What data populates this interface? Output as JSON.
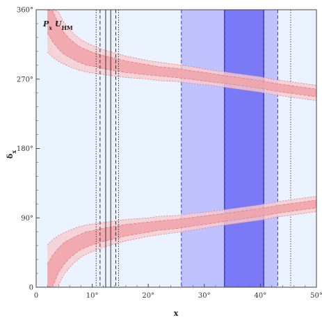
{
  "chart_data": {
    "type": "area",
    "title_main": "P",
    "title_sub1": "x",
    "title_mid": " U",
    "title_sub2": "HM",
    "xlabel": "x",
    "ylabel_main": "δ",
    "ylabel_sub": "x",
    "xlim": [
      0,
      50
    ],
    "ylim": [
      0,
      360
    ],
    "x_ticks": [
      0,
      10,
      20,
      30,
      40,
      50
    ],
    "x_tick_labels": [
      "0",
      "10°",
      "20°",
      "30°",
      "40°",
      "50°"
    ],
    "y_ticks": [
      0,
      90,
      180,
      270,
      360
    ],
    "y_tick_labels": [
      "0",
      "90°",
      "180°",
      "270°",
      "360°"
    ],
    "light_region_x": [
      0,
      50
    ],
    "blue_bands": [
      {
        "name": "outer",
        "x": [
          25.9,
          43.1
        ],
        "color": "#b8b8ff"
      },
      {
        "name": "inner",
        "x": [
          33.6,
          40.6
        ],
        "color": "#6d6df5"
      }
    ],
    "dotted_blue_lines_x": [
      45.4
    ],
    "solid_blue_lines_x": [
      33.6,
      40.6
    ],
    "black_lines": [
      {
        "x": 10.7,
        "style": "dotted"
      },
      {
        "x": 11.4,
        "style": "dashed"
      },
      {
        "x": 12.4,
        "style": "solid"
      },
      {
        "x": 13.3,
        "style": "solid"
      },
      {
        "x": 14.2,
        "style": "dashed"
      },
      {
        "x": 14.7,
        "style": "dotted"
      }
    ],
    "red_series": [
      {
        "name": "upper",
        "x": [
          2,
          3,
          4,
          5,
          6,
          7,
          8,
          9,
          10,
          12,
          14,
          16,
          18,
          20,
          22,
          25,
          28,
          31,
          34,
          37,
          40,
          43,
          46,
          50
        ],
        "center": [
          360,
          338,
          325,
          316,
          310,
          305,
          301,
          298,
          296,
          292,
          289,
          286,
          284,
          282,
          280,
          278,
          275,
          272,
          269,
          266,
          263,
          259,
          256,
          252
        ],
        "inner_halfwidth": [
          30,
          20,
          16,
          14,
          12,
          11,
          10,
          10,
          9,
          8.5,
          8,
          7.5,
          7,
          6.5,
          6,
          6,
          5.5,
          5.5,
          5,
          5,
          5,
          5,
          5,
          5
        ],
        "outer_halfwidth": [
          55,
          40,
          32,
          27,
          24,
          22,
          20,
          19,
          18,
          16,
          15,
          14,
          13,
          12,
          12,
          11,
          11,
          10,
          10,
          10,
          10,
          10,
          10,
          10
        ]
      },
      {
        "name": "lower",
        "x": [
          2,
          3,
          4,
          5,
          6,
          7,
          8,
          9,
          10,
          12,
          14,
          16,
          18,
          20,
          22,
          25,
          28,
          31,
          34,
          37,
          40,
          43,
          46,
          50
        ],
        "center": [
          0,
          22,
          35,
          44,
          50,
          55,
          59,
          62,
          64,
          68,
          71,
          74,
          76,
          78,
          80,
          82,
          85,
          88,
          91,
          94,
          97,
          101,
          104,
          108
        ],
        "inner_halfwidth": [
          30,
          20,
          16,
          14,
          12,
          11,
          10,
          10,
          9,
          8.5,
          8,
          7.5,
          7,
          6.5,
          6,
          6,
          5.5,
          5.5,
          5,
          5,
          5,
          5,
          5,
          5
        ],
        "outer_halfwidth": [
          55,
          40,
          32,
          27,
          24,
          22,
          20,
          19,
          18,
          16,
          15,
          14,
          13,
          12,
          12,
          11,
          11,
          10,
          10,
          10,
          10,
          10,
          10,
          10
        ]
      }
    ],
    "colors": {
      "light_region": "#eaf3ff",
      "red_inner": "#f0a3a8",
      "red_outer": "#f6ccd0",
      "red_line": "#e07a85",
      "blue_line": "#4040d0",
      "black_line": "#222222"
    }
  }
}
